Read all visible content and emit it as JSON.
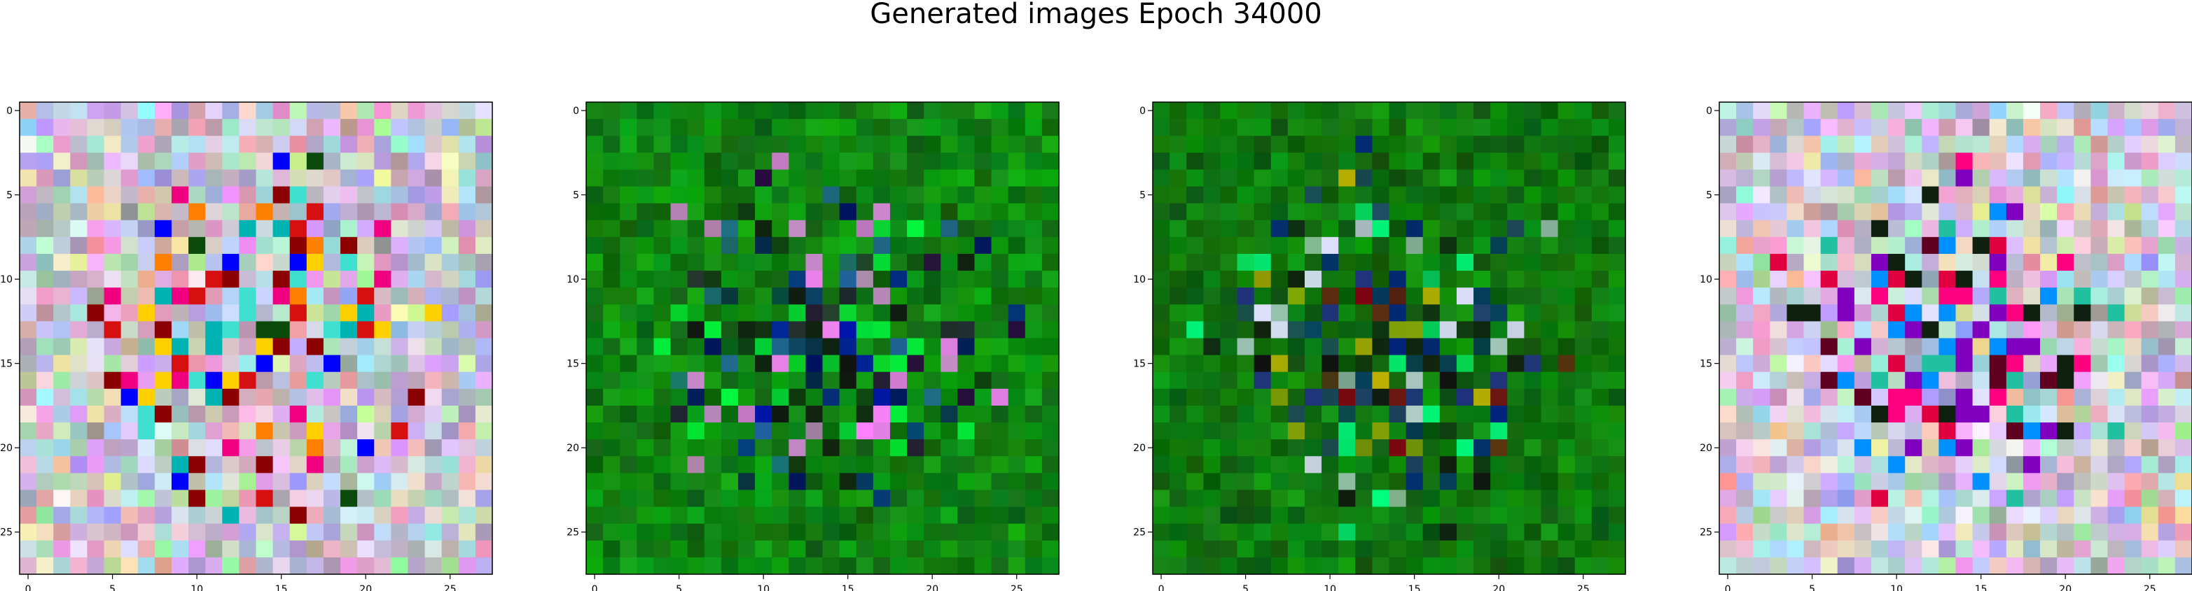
{
  "figure": {
    "title": "Generated images Epoch 34000"
  },
  "chart_data": [
    {
      "type": "heatmap",
      "name": "panel-1",
      "grid_size": [
        28,
        28
      ],
      "xticks": [
        0,
        5,
        10,
        15,
        20,
        25
      ],
      "yticks": [
        0,
        5,
        10,
        15,
        20,
        25
      ],
      "xlim": [
        -0.5,
        27.5
      ],
      "ylim": [
        27.5,
        -0.5
      ],
      "palette": "pastel-multicolor",
      "base_color": "#c9c0d6",
      "accent_colors": [
        "#d61010",
        "#8b0000",
        "#f00080",
        "#ffd000",
        "#00b3b3",
        "#0000ff",
        "#0a4a0a",
        "#40e0d0",
        "#ff8000"
      ]
    },
    {
      "type": "heatmap",
      "name": "panel-2",
      "grid_size": [
        28,
        28
      ],
      "xticks": [
        0,
        5,
        10,
        15,
        20,
        25
      ],
      "yticks": [
        0,
        5,
        10,
        15,
        20,
        25
      ],
      "xlim": [
        -0.5,
        27.5
      ],
      "ylim": [
        27.5,
        -0.5
      ],
      "palette": "green-dominant",
      "base_color": "#0b8a10",
      "accent_colors": [
        "#001060",
        "#0010b0",
        "#101010",
        "#2a0040",
        "#00ff40",
        "#ff80ff",
        "#2060a0"
      ]
    },
    {
      "type": "heatmap",
      "name": "panel-3",
      "grid_size": [
        28,
        28
      ],
      "xticks": [
        0,
        5,
        10,
        15,
        20,
        25
      ],
      "yticks": [
        0,
        5,
        10,
        15,
        20,
        25
      ],
      "xlim": [
        -0.5,
        27.5
      ],
      "ylim": [
        27.5,
        -0.5
      ],
      "palette": "green-dominant",
      "base_color": "#0a7a0a",
      "accent_colors": [
        "#002080",
        "#101010",
        "#800010",
        "#c0b000",
        "#00ff80",
        "#e0e0ff",
        "#203080"
      ]
    },
    {
      "type": "heatmap",
      "name": "panel-4",
      "grid_size": [
        28,
        28
      ],
      "xticks": [
        0,
        5,
        10,
        15,
        20,
        25
      ],
      "yticks": [
        0,
        5,
        10,
        15,
        20,
        25
      ],
      "xlim": [
        -0.5,
        27.5
      ],
      "ylim": [
        27.5,
        -0.5
      ],
      "palette": "pastel-multicolor",
      "base_color": "#d0c8e0",
      "accent_colors": [
        "#e00040",
        "#ff0080",
        "#8000c0",
        "#0090ff",
        "#102010",
        "#600020",
        "#20c0a0"
      ]
    }
  ]
}
